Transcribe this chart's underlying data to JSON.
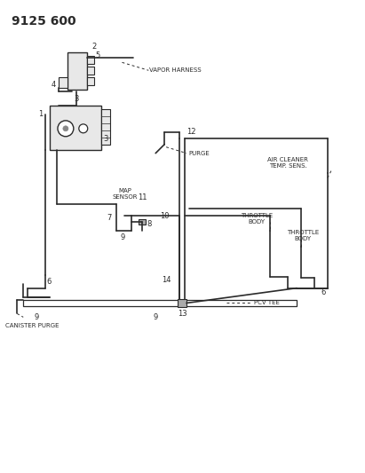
{
  "title": "9125 600",
  "background_color": "#ffffff",
  "line_color": "#2a2a2a",
  "text_color": "#2a2a2a",
  "labels": {
    "vapor_harness": "VAPOR HARNESS",
    "map_sensor": "MAP\nSENSOR",
    "purge": "PURGE",
    "air_cleaner": "AIR CLEANER\nTEMP. SENS.",
    "throttle_body1": "THROTTLE\nBODY",
    "throttle_body2": "THROTTLE\nBODY",
    "pcv_tee": "PCV TEE",
    "canister_purge": "CANISTER PURGE"
  },
  "figsize": [
    4.11,
    5.33
  ],
  "dpi": 100
}
